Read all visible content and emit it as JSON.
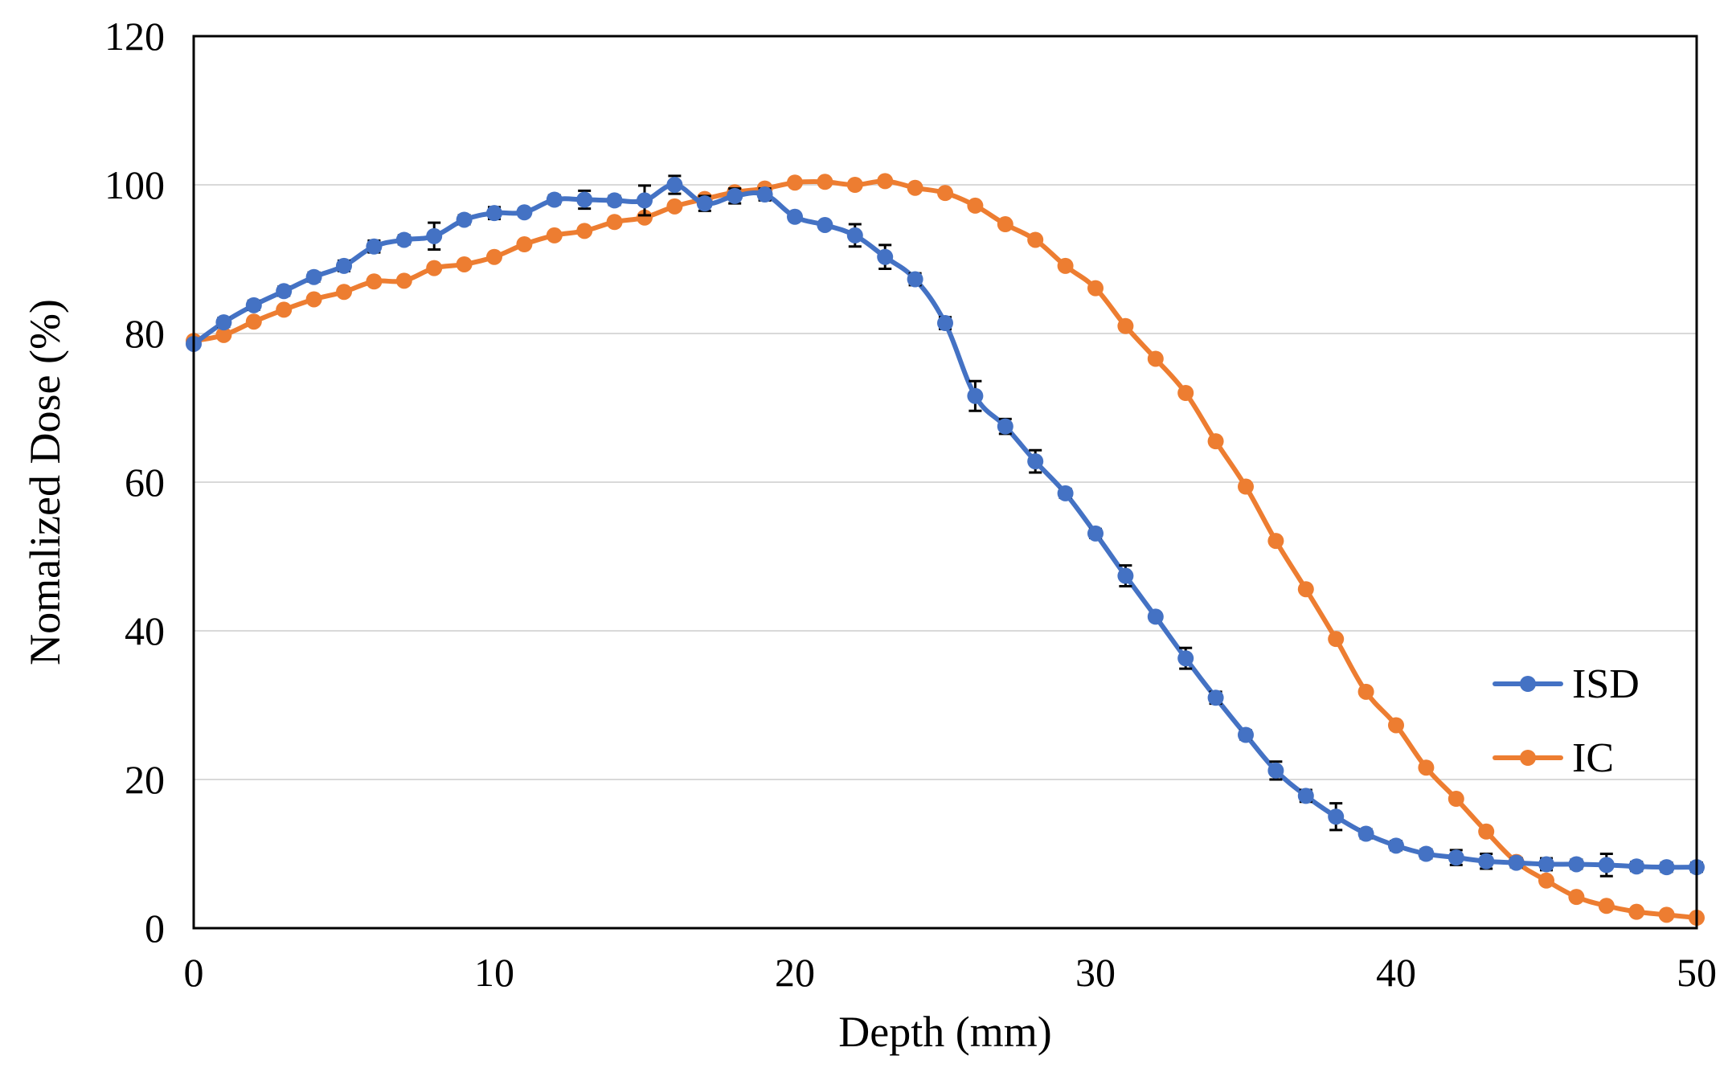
{
  "chart_data": {
    "type": "line",
    "title": "",
    "xlabel": "Depth (mm)",
    "ylabel": "Nomalized Dose (%)",
    "xlim": [
      0,
      50
    ],
    "ylim": [
      0,
      120
    ],
    "xticks": [
      0,
      10,
      20,
      30,
      40,
      50
    ],
    "yticks": [
      0,
      20,
      40,
      60,
      80,
      100,
      120
    ],
    "x_tick_labels": [
      "0",
      "10",
      "20",
      "30",
      "40",
      "50"
    ],
    "y_tick_labels": [
      "0",
      "20",
      "40",
      "60",
      "80",
      "100",
      "120"
    ],
    "grid": "horizontal",
    "legend_position": "right",
    "x": [
      0,
      1,
      2,
      3,
      4,
      5,
      6,
      7,
      8,
      9,
      10,
      11,
      12,
      13,
      14,
      15,
      16,
      17,
      18,
      19,
      20,
      21,
      22,
      23,
      24,
      25,
      26,
      27,
      28,
      29,
      30,
      31,
      32,
      33,
      34,
      35,
      36,
      37,
      38,
      39,
      40,
      41,
      42,
      43,
      44,
      45,
      46,
      47,
      48,
      49,
      50
    ],
    "series": [
      {
        "name": "ISD",
        "color": "#4472C4",
        "values": [
          78.6,
          81.5,
          83.8,
          85.7,
          87.6,
          89.1,
          91.7,
          92.6,
          93.1,
          95.3,
          96.2,
          96.3,
          98.0,
          98.0,
          97.9,
          97.9,
          100.0,
          97.5,
          98.5,
          98.7,
          95.7,
          94.6,
          93.2,
          90.3,
          87.3,
          81.4,
          71.6,
          67.5,
          62.8,
          58.5,
          53.1,
          47.4,
          41.9,
          36.3,
          31.0,
          26.0,
          21.2,
          17.8,
          15.0,
          12.7,
          11.1,
          10.0,
          9.5,
          9.0,
          8.8,
          8.6,
          8.6,
          8.5,
          8.3,
          8.2,
          8.2
        ],
        "errors": [
          0.5,
          0.6,
          0.6,
          0.6,
          0.6,
          0.7,
          0.8,
          0.6,
          1.8,
          0.6,
          0.8,
          0.5,
          0.6,
          1.2,
          0.6,
          2.0,
          1.2,
          1.0,
          1.0,
          0.8,
          0.5,
          0.5,
          1.5,
          1.6,
          0.8,
          0.8,
          2.0,
          1.0,
          1.5,
          0.6,
          0.6,
          1.4,
          0.5,
          1.4,
          0.8,
          0.6,
          1.2,
          0.8,
          1.8,
          0.6,
          0.6,
          0.6,
          1.0,
          1.0,
          0.6,
          0.8,
          0.6,
          1.5,
          0.6,
          0.6,
          0.6
        ]
      },
      {
        "name": "IC",
        "color": "#ED7D31",
        "values": [
          79.0,
          79.8,
          81.6,
          83.2,
          84.6,
          85.6,
          87.0,
          87.1,
          88.8,
          89.3,
          90.3,
          92.0,
          93.2,
          93.8,
          95.0,
          95.6,
          97.1,
          98.1,
          99.0,
          99.5,
          100.3,
          100.4,
          100.0,
          100.5,
          99.6,
          98.9,
          97.2,
          94.7,
          92.6,
          89.1,
          86.1,
          81.0,
          76.6,
          72.0,
          65.5,
          59.4,
          52.1,
          45.6,
          38.9,
          31.8,
          27.3,
          21.6,
          17.4,
          13.0,
          8.9,
          6.4,
          4.2,
          3.0,
          2.2,
          1.8,
          1.4
        ]
      }
    ]
  }
}
